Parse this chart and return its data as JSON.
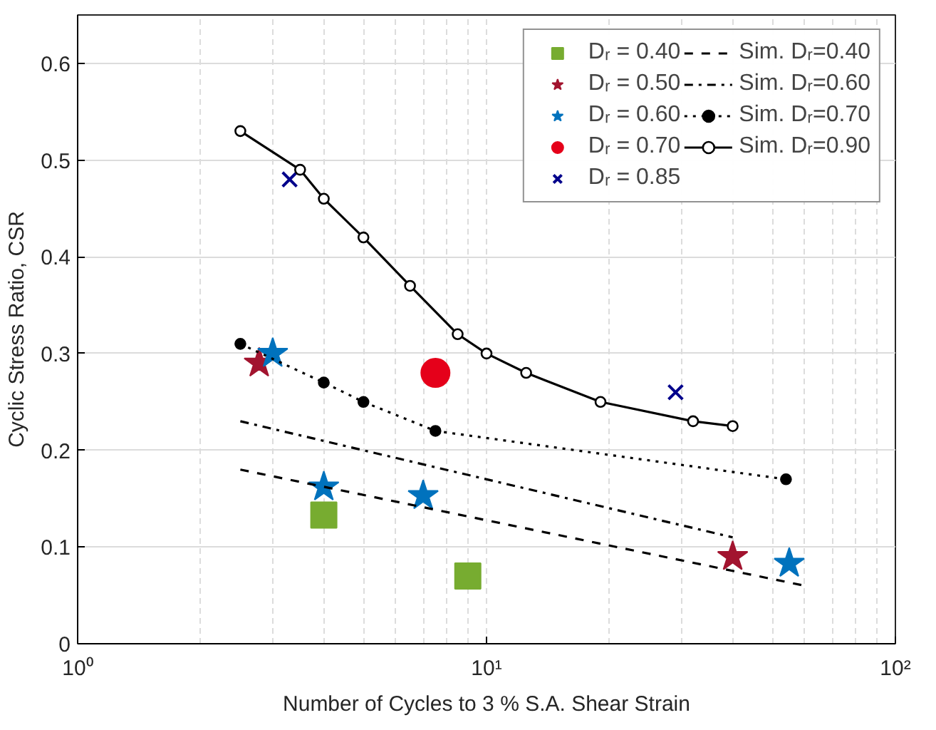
{
  "chart_data": {
    "type": "scatter",
    "xlabel": "Number of Cycles to 3 % S.A. Shear Strain",
    "ylabel": "Cyclic Stress Ratio, CSR",
    "log": "x",
    "xlim": [
      1,
      100
    ],
    "xticks": [
      {
        "value": 1,
        "label": "10⁰"
      },
      {
        "value": 10,
        "label": "10¹"
      },
      {
        "value": 100,
        "label": "10²"
      }
    ],
    "ylim": [
      0,
      0.65
    ],
    "yticks": [
      0,
      0.1,
      0.2,
      0.3,
      0.4,
      0.5,
      0.6
    ],
    "grid": true,
    "legend": "top right",
    "series": [
      {
        "name": "Dᵣ = 0.40",
        "marker": "square",
        "color": "#77ac30",
        "x": [
          4,
          9
        ],
        "values": [
          0.133,
          0.07
        ]
      },
      {
        "name": "Dᵣ = 0.50",
        "marker": "star",
        "color": "#a2142f",
        "x": [
          2.78,
          40
        ],
        "values": [
          0.29,
          0.09
        ]
      },
      {
        "name": "Dᵣ = 0.60",
        "marker": "star",
        "color": "#0072bd",
        "x": [
          3,
          4,
          7,
          55
        ],
        "values": [
          0.3,
          0.162,
          0.153,
          0.083
        ]
      },
      {
        "name": "Dᵣ = 0.70",
        "marker": "circle",
        "color": "#e5001a",
        "x": [
          7.5
        ],
        "values": [
          0.28
        ]
      },
      {
        "name": "Dᵣ = 0.85",
        "marker": "cross",
        "color": "#00008b",
        "x": [
          3.3,
          29
        ],
        "values": [
          0.48,
          0.26
        ]
      },
      {
        "name": "Sim. Dᵣ=0.40",
        "type": "line",
        "line_style": "dashed",
        "marker": "none",
        "color": "#000000",
        "x": [
          2.5,
          60
        ],
        "values": [
          0.18,
          0.06
        ]
      },
      {
        "name": "Sim. Dᵣ=0.60",
        "type": "line",
        "line_style": "dashdot",
        "marker": "none",
        "color": "#000000",
        "x": [
          2.5,
          40
        ],
        "values": [
          0.23,
          0.11
        ]
      },
      {
        "name": "Sim. Dᵣ=0.70",
        "type": "line",
        "line_style": "dotted",
        "marker": "circle",
        "color": "#000000",
        "x": [
          2.5,
          4,
          5,
          7.5,
          54
        ],
        "values": [
          0.31,
          0.27,
          0.25,
          0.22,
          0.17
        ]
      },
      {
        "name": "Sim. Dᵣ=0.90",
        "type": "line",
        "line_style": "solid",
        "marker": "circle",
        "color": "#000000",
        "x": [
          2.5,
          3.5,
          4,
          5,
          6.5,
          8.5,
          10,
          12.5,
          19,
          32,
          40
        ],
        "values": [
          0.53,
          0.49,
          0.46,
          0.42,
          0.37,
          0.32,
          0.3,
          0.28,
          0.25,
          0.23,
          0.225
        ]
      }
    ]
  }
}
